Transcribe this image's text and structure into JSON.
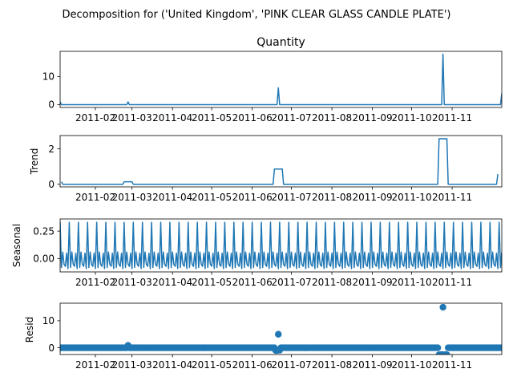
{
  "figure": {
    "suptitle": "Decomposition for ('United Kingdom', 'PINK CLEAR GLASS CANDLE PLATE')",
    "line_color": "#1f77b4"
  },
  "chart_data": [
    {
      "type": "line",
      "title": "Quantity",
      "ylabel": "",
      "xlim": [
        "2011-01-05",
        "2011-12-09"
      ],
      "ylim": [
        -1,
        19
      ],
      "yticks": [
        0,
        10
      ],
      "xticks": [
        "2011-02",
        "2011-03",
        "2011-04",
        "2011-05",
        "2011-06",
        "2011-07",
        "2011-08",
        "2011-09",
        "2011-10",
        "2011-11"
      ],
      "series": [
        {
          "x": [
            "2011-01-05",
            "2011-01-06",
            "2011-02-25",
            "2011-02-26",
            "2011-02-27",
            "2011-06-20",
            "2011-06-21",
            "2011-06-22",
            "2011-10-24",
            "2011-10-25",
            "2011-10-26",
            "2011-12-08",
            "2011-12-09"
          ],
          "values": [
            1,
            0,
            0,
            1,
            0,
            0,
            6,
            0,
            0,
            18,
            0,
            0,
            4
          ]
        }
      ]
    },
    {
      "type": "line",
      "title": "",
      "ylabel": "Trend",
      "xlim": [
        "2011-01-05",
        "2011-12-09"
      ],
      "ylim": [
        -0.15,
        2.75
      ],
      "yticks": [
        0,
        2
      ],
      "xticks": [
        "2011-02",
        "2011-03",
        "2011-04",
        "2011-05",
        "2011-06",
        "2011-07",
        "2011-08",
        "2011-09",
        "2011-10",
        "2011-11"
      ],
      "series": [
        {
          "x": [
            "2011-01-06",
            "2011-01-07",
            "2011-02-22",
            "2011-02-23",
            "2011-03-01",
            "2011-03-02",
            "2011-06-17",
            "2011-06-18",
            "2011-06-24",
            "2011-06-25",
            "2011-10-21",
            "2011-10-22",
            "2011-10-28",
            "2011-10-29",
            "2011-12-05",
            "2011-12-06"
          ],
          "values": [
            0.14,
            0,
            0,
            0.14,
            0.14,
            0,
            0,
            0.86,
            0.86,
            0,
            0,
            2.57,
            2.57,
            0,
            0,
            0.57
          ]
        }
      ]
    },
    {
      "type": "line",
      "title": "",
      "ylabel": "Seasonal",
      "xlim": [
        "2011-01-05",
        "2011-12-09"
      ],
      "ylim": [
        -0.12,
        0.36
      ],
      "yticks": [
        0.0,
        0.25
      ],
      "ytick_labels": [
        "0.00",
        "0.25"
      ],
      "xticks": [
        "2011-02",
        "2011-03",
        "2011-04",
        "2011-05",
        "2011-06",
        "2011-07",
        "2011-08",
        "2011-09",
        "2011-10",
        "2011-11"
      ],
      "period_days": 7,
      "weekly_pattern": [
        0.33,
        -0.08,
        0.06,
        -0.05,
        -0.07,
        0.05,
        -0.09
      ],
      "series": [
        {
          "x_start": "2011-01-05",
          "x_end": "2011-12-09"
        }
      ]
    },
    {
      "type": "scatter",
      "title": "",
      "ylabel": "Resid",
      "xlim": [
        "2011-01-05",
        "2011-12-09"
      ],
      "ylim": [
        -2.5,
        16.5
      ],
      "yticks": [
        0,
        10
      ],
      "xticks": [
        "2011-02",
        "2011-03",
        "2011-04",
        "2011-05",
        "2011-06",
        "2011-07",
        "2011-08",
        "2011-09",
        "2011-10",
        "2011-11"
      ],
      "notable_points": [
        {
          "x": "2011-02-26",
          "value": 0.9
        },
        {
          "x": "2011-06-19",
          "value": -1.0
        },
        {
          "x": "2011-06-20",
          "value": -1.0
        },
        {
          "x": "2011-06-21",
          "value": 5.0
        },
        {
          "x": "2011-06-22",
          "value": -0.9
        },
        {
          "x": "2011-10-22",
          "value": -2.6
        },
        {
          "x": "2011-10-23",
          "value": -2.6
        },
        {
          "x": "2011-10-24",
          "value": -2.5
        },
        {
          "x": "2011-10-25",
          "value": 15.0
        },
        {
          "x": "2011-10-26",
          "value": -2.6
        },
        {
          "x": "2011-10-27",
          "value": -2.5
        },
        {
          "x": "2011-10-28",
          "value": -2.6
        }
      ],
      "baseline_value": 0
    }
  ]
}
